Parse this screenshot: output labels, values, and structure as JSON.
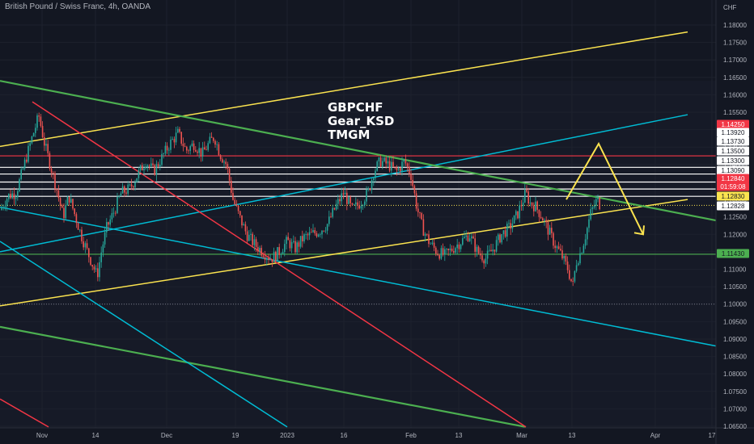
{
  "header": {
    "title": "British Pound / Swiss Franc, 4h, OANDA"
  },
  "annotation": {
    "lines": [
      "GBPCHF",
      "Gear_KSD",
      "TMGM"
    ]
  },
  "colors": {
    "background": "#131722",
    "up": "#26a69a",
    "down": "#ef5350",
    "yellow": "#fbe34f",
    "green": "#4caf50",
    "red": "#f23645",
    "cyan": "#00bcd4",
    "white": "#ffffff"
  },
  "chart_data": {
    "type": "candlestick",
    "currency_label": "CHF",
    "ylim": [
      1.065,
      1.184
    ],
    "y_ticks": [
      "1.18000",
      "1.17500",
      "1.17000",
      "1.16500",
      "1.16000",
      "1.15500",
      "1.15000",
      "1.14500",
      "1.14000",
      "1.13500",
      "1.13000",
      "1.12500",
      "1.12000",
      "1.11500",
      "1.11000",
      "1.10500",
      "1.10000",
      "1.09500",
      "1.09000",
      "1.08500",
      "1.08000",
      "1.07500",
      "1.07000",
      "1.06500"
    ],
    "x_ticks": [
      "Nov",
      "14",
      "Dec",
      "19",
      "2023",
      "16",
      "Feb",
      "13",
      "Mar",
      "13",
      "Apr",
      "17"
    ],
    "price_badges": [
      {
        "label": "1.14250",
        "color": "#f23645",
        "text_color": "#ffffff"
      },
      {
        "label": "1.13920",
        "color": "#ffffff",
        "text_color": "#131722"
      },
      {
        "label": "1.13730",
        "color": "#ffffff",
        "text_color": "#131722"
      },
      {
        "label": "1.13500",
        "color": "#ffffff",
        "text_color": "#131722"
      },
      {
        "label": "1.13300",
        "color": "#ffffff",
        "text_color": "#131722"
      },
      {
        "label": "1.13090",
        "color": "#ffffff",
        "text_color": "#131722"
      },
      {
        "label": "1.12840",
        "color": "#f23645",
        "text_color": "#ffffff"
      },
      {
        "label": "01:59:08",
        "color": "#f23645",
        "text_color": "#ffffff"
      },
      {
        "label": "1.12830",
        "color": "#fbe34f",
        "text_color": "#131722"
      },
      {
        "label": "1.12828",
        "color": "#ffffff",
        "text_color": "#131722"
      },
      {
        "label": "1.11430",
        "color": "#4caf50",
        "text_color": "#131722"
      }
    ],
    "horizontal_levels": [
      {
        "price": 1.1425,
        "color": "#f23645"
      },
      {
        "price": 1.1392,
        "color": "#ffffff"
      },
      {
        "price": 1.1373,
        "color": "#ffffff"
      },
      {
        "price": 1.135,
        "color": "#ffffff"
      },
      {
        "price": 1.133,
        "color": "#ffffff"
      },
      {
        "price": 1.1309,
        "color": "#ffffff"
      },
      {
        "price": 1.1283,
        "color": "#fbe34f",
        "dotted": true
      },
      {
        "price": 1.1143,
        "color": "#4caf50"
      },
      {
        "price": 1.1,
        "color": "#787b86",
        "dotted": true
      }
    ],
    "trendlines": [
      {
        "name": "upper-yellow-channel",
        "color": "#fbe34f",
        "x": [
          0,
          850
        ],
        "y": [
          1.1452,
          1.178
        ]
      },
      {
        "name": "lower-yellow-channel",
        "color": "#fbe34f",
        "x": [
          0,
          850
        ],
        "y": [
          1.0995,
          1.13
        ]
      },
      {
        "name": "cyan-upper",
        "color": "#00bcd4",
        "x": [
          0,
          850
        ],
        "y": [
          1.115,
          1.1543
        ]
      },
      {
        "name": "cyan-mid",
        "color": "#00bcd4",
        "x": [
          0,
          885
        ],
        "y": [
          1.1278,
          1.088
        ]
      },
      {
        "name": "green-upper",
        "color": "#4caf50",
        "x": [
          0,
          885
        ],
        "y": [
          1.164,
          1.124
        ]
      },
      {
        "name": "green-lower",
        "color": "#4caf50",
        "x": [
          0,
          650
        ],
        "y": [
          1.0935,
          1.0648
        ]
      },
      {
        "name": "red-diagonal",
        "color": "#f23645",
        "x": [
          40,
          650
        ],
        "y": [
          1.158,
          1.0648
        ]
      },
      {
        "name": "cyan-steep",
        "color": "#00bcd4",
        "x": [
          0,
          355
        ],
        "y": [
          1.118,
          1.0648
        ]
      },
      {
        "name": "red-steep",
        "color": "#f23645",
        "x": [
          0,
          60
        ],
        "y": [
          1.0728,
          1.0648
        ]
      }
    ],
    "projection_path": {
      "color": "#fbe34f",
      "points": [
        [
          700,
          1.13
        ],
        [
          740,
          1.146
        ],
        [
          795,
          1.12
        ]
      ]
    },
    "price_path": [
      [
        0,
        1.127
      ],
      [
        10,
        1.131
      ],
      [
        20,
        1.132
      ],
      [
        30,
        1.14
      ],
      [
        40,
        1.148
      ],
      [
        48,
        1.154
      ],
      [
        55,
        1.146
      ],
      [
        62,
        1.14
      ],
      [
        70,
        1.133
      ],
      [
        78,
        1.125
      ],
      [
        85,
        1.131
      ],
      [
        92,
        1.126
      ],
      [
        100,
        1.12
      ],
      [
        108,
        1.115
      ],
      [
        115,
        1.111
      ],
      [
        120,
        1.108
      ],
      [
        126,
        1.116
      ],
      [
        132,
        1.122
      ],
      [
        140,
        1.126
      ],
      [
        150,
        1.132
      ],
      [
        160,
        1.133
      ],
      [
        170,
        1.137
      ],
      [
        180,
        1.141
      ],
      [
        190,
        1.138
      ],
      [
        200,
        1.142
      ],
      [
        210,
        1.146
      ],
      [
        220,
        1.149
      ],
      [
        230,
        1.144
      ],
      [
        240,
        1.146
      ],
      [
        250,
        1.143
      ],
      [
        258,
        1.146
      ],
      [
        265,
        1.148
      ],
      [
        272,
        1.143
      ],
      [
        280,
        1.14
      ],
      [
        288,
        1.13
      ],
      [
        296,
        1.125
      ],
      [
        305,
        1.12
      ],
      [
        315,
        1.117
      ],
      [
        325,
        1.115
      ],
      [
        335,
        1.113
      ],
      [
        345,
        1.115
      ],
      [
        355,
        1.118
      ],
      [
        365,
        1.116
      ],
      [
        375,
        1.119
      ],
      [
        385,
        1.12
      ],
      [
        395,
        1.121
      ],
      [
        405,
        1.123
      ],
      [
        415,
        1.128
      ],
      [
        425,
        1.132
      ],
      [
        435,
        1.127
      ],
      [
        445,
        1.129
      ],
      [
        455,
        1.132
      ],
      [
        462,
        1.138
      ],
      [
        470,
        1.141
      ],
      [
        480,
        1.14
      ],
      [
        490,
        1.138
      ],
      [
        500,
        1.141
      ],
      [
        508,
        1.137
      ],
      [
        515,
        1.128
      ],
      [
        522,
        1.122
      ],
      [
        530,
        1.118
      ],
      [
        540,
        1.115
      ],
      [
        550,
        1.114
      ],
      [
        560,
        1.116
      ],
      [
        570,
        1.118
      ],
      [
        580,
        1.12
      ],
      [
        590,
        1.115
      ],
      [
        600,
        1.113
      ],
      [
        610,
        1.116
      ],
      [
        620,
        1.12
      ],
      [
        630,
        1.122
      ],
      [
        640,
        1.126
      ],
      [
        650,
        1.132
      ],
      [
        655,
        1.129
      ],
      [
        662,
        1.128
      ],
      [
        670,
        1.125
      ],
      [
        678,
        1.121
      ],
      [
        686,
        1.117
      ],
      [
        694,
        1.114
      ],
      [
        702,
        1.11
      ],
      [
        708,
        1.105
      ],
      [
        712,
        1.112
      ],
      [
        718,
        1.115
      ],
      [
        724,
        1.12
      ],
      [
        730,
        1.126
      ],
      [
        738,
        1.13
      ],
      [
        742,
        1.1284
      ]
    ]
  }
}
